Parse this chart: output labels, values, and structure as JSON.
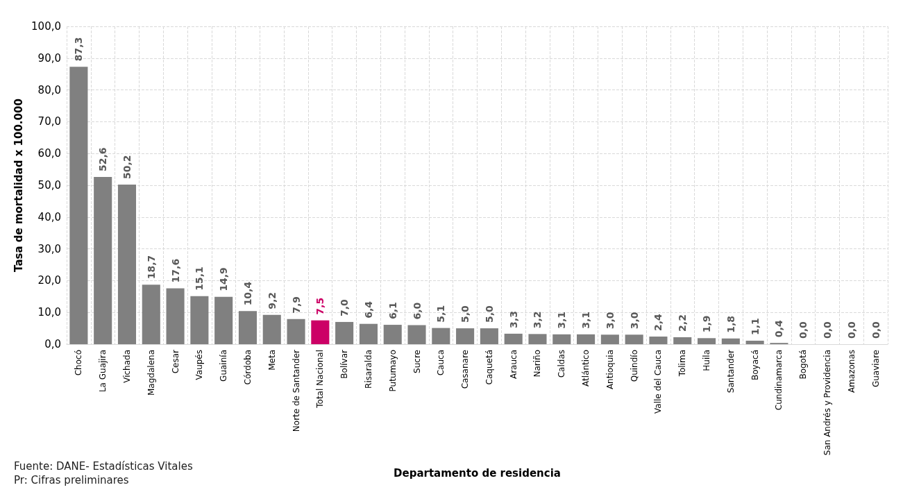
{
  "chart_data": {
    "type": "bar",
    "xlabel": "Departamento de residencia",
    "ylabel": "Tasa de mortalidad x 100.000",
    "categories": [
      "Chocó",
      "La Guajira",
      "Vichada",
      "Magdalena",
      "Cesar",
      "Vaupés",
      "Guainía",
      "Córdoba",
      "Meta",
      "Norte de Santander",
      "Total Nacional",
      "Bolívar",
      "Risaralda",
      "Putumayo",
      "Sucre",
      "Cauca",
      "Casanare",
      "Caquetá",
      "Arauca",
      "Nariño",
      "Caldas",
      "Atlántico",
      "Antioquia",
      "Quindío",
      "Valle del Cauca",
      "Tolima",
      "Huila",
      "Santander",
      "Boyacá",
      "Cundinamarca",
      "Bogotá",
      "San Andrés y Providencia",
      "Amazonas",
      "Guaviare"
    ],
    "values": [
      87.3,
      52.6,
      50.2,
      18.7,
      17.6,
      15.1,
      14.9,
      10.4,
      9.2,
      7.9,
      7.5,
      7.0,
      6.4,
      6.1,
      6.0,
      5.1,
      5.0,
      5.0,
      3.3,
      3.2,
      3.1,
      3.1,
      3.0,
      3.0,
      2.4,
      2.2,
      1.9,
      1.8,
      1.1,
      0.4,
      0.0,
      0.0,
      0.0,
      0.0
    ],
    "colors": [
      "#808080",
      "#808080",
      "#808080",
      "#808080",
      "#808080",
      "#808080",
      "#808080",
      "#808080",
      "#808080",
      "#808080",
      "#cc0066",
      "#808080",
      "#808080",
      "#808080",
      "#808080",
      "#808080",
      "#808080",
      "#808080",
      "#808080",
      "#808080",
      "#808080",
      "#808080",
      "#808080",
      "#808080",
      "#808080",
      "#808080",
      "#808080",
      "#808080",
      "#808080",
      "#808080",
      "#808080",
      "#808080",
      "#808080",
      "#808080"
    ],
    "ylim": [
      0,
      100
    ],
    "yticks": [
      {
        "value": 0,
        "label": "0,0"
      },
      {
        "value": 10,
        "label": "10,0"
      },
      {
        "value": 20,
        "label": "20,0"
      },
      {
        "value": 30,
        "label": "30,0"
      },
      {
        "value": 40,
        "label": "40,0"
      },
      {
        "value": 50,
        "label": "50,0"
      },
      {
        "value": 60,
        "label": "60,0"
      },
      {
        "value": 70,
        "label": "70,0"
      },
      {
        "value": 80,
        "label": "80,0"
      },
      {
        "value": 90,
        "label": "90,0"
      },
      {
        "value": 100,
        "label": "100,0"
      }
    ],
    "grid": true,
    "value_labels": [
      "87,3",
      "52,6",
      "50,2",
      "18,7",
      "17,6",
      "15,1",
      "14,9",
      "10,4",
      "9,2",
      "7,9",
      "7,5",
      "7,0",
      "6,4",
      "6,1",
      "6,0",
      "5,1",
      "5,0",
      "5,0",
      "3,3",
      "3,2",
      "3,1",
      "3,1",
      "3,0",
      "3,0",
      "2,4",
      "2,2",
      "1,9",
      "1,8",
      "1,1",
      "0,4",
      "0,0",
      "0,0",
      "0,0",
      "0,0"
    ],
    "annotations": [
      "Fuente: DANE- Estadísticas Vitales",
      "Pr: Cifras preliminares"
    ]
  }
}
